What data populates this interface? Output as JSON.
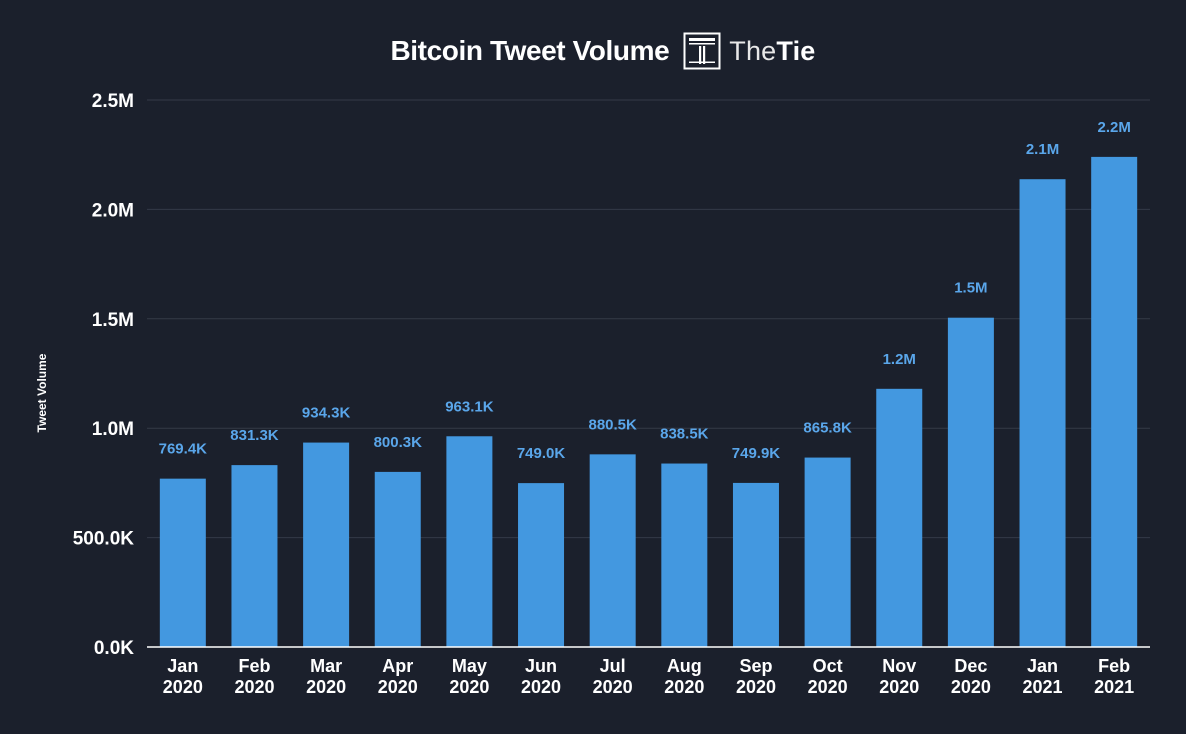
{
  "header": {
    "title": "Bitcoin Tweet Volume",
    "brand_name_light": "The",
    "brand_name_bold": "Tie"
  },
  "chart_data": {
    "type": "bar",
    "title": "Bitcoin Tweet Volume",
    "xlabel": "",
    "ylabel": "Tweet Volume",
    "ylim": [
      0,
      2500000
    ],
    "yticks": [
      0,
      500000,
      1000000,
      1500000,
      2000000,
      2500000
    ],
    "ytick_labels": [
      "0.0K",
      "500.0K",
      "1.0M",
      "1.5M",
      "2.0M",
      "2.5M"
    ],
    "grid": true,
    "categories": [
      [
        "Jan",
        "2020"
      ],
      [
        "Feb",
        "2020"
      ],
      [
        "Mar",
        "2020"
      ],
      [
        "Apr",
        "2020"
      ],
      [
        "May",
        "2020"
      ],
      [
        "Jun",
        "2020"
      ],
      [
        "Jul",
        "2020"
      ],
      [
        "Aug",
        "2020"
      ],
      [
        "Sep",
        "2020"
      ],
      [
        "Oct",
        "2020"
      ],
      [
        "Nov",
        "2020"
      ],
      [
        "Dec",
        "2020"
      ],
      [
        "Jan",
        "2021"
      ],
      [
        "Feb",
        "2021"
      ]
    ],
    "values": [
      769400,
      831300,
      934300,
      800300,
      963100,
      749000,
      880500,
      838500,
      749900,
      865800,
      1180000,
      1505000,
      2138000,
      2240000
    ],
    "value_labels": [
      "769.4K",
      "831.3K",
      "934.3K",
      "800.3K",
      "963.1K",
      "749.0K",
      "880.5K",
      "838.5K",
      "749.9K",
      "865.8K",
      "1.2M",
      "1.5M",
      "2.1M",
      "2.2M"
    ],
    "colors": {
      "bar": "#4398e0",
      "value_label": "#5aa6ea",
      "background": "#1b202c",
      "grid": "#343a47",
      "axis_text": "#ffffff"
    }
  }
}
